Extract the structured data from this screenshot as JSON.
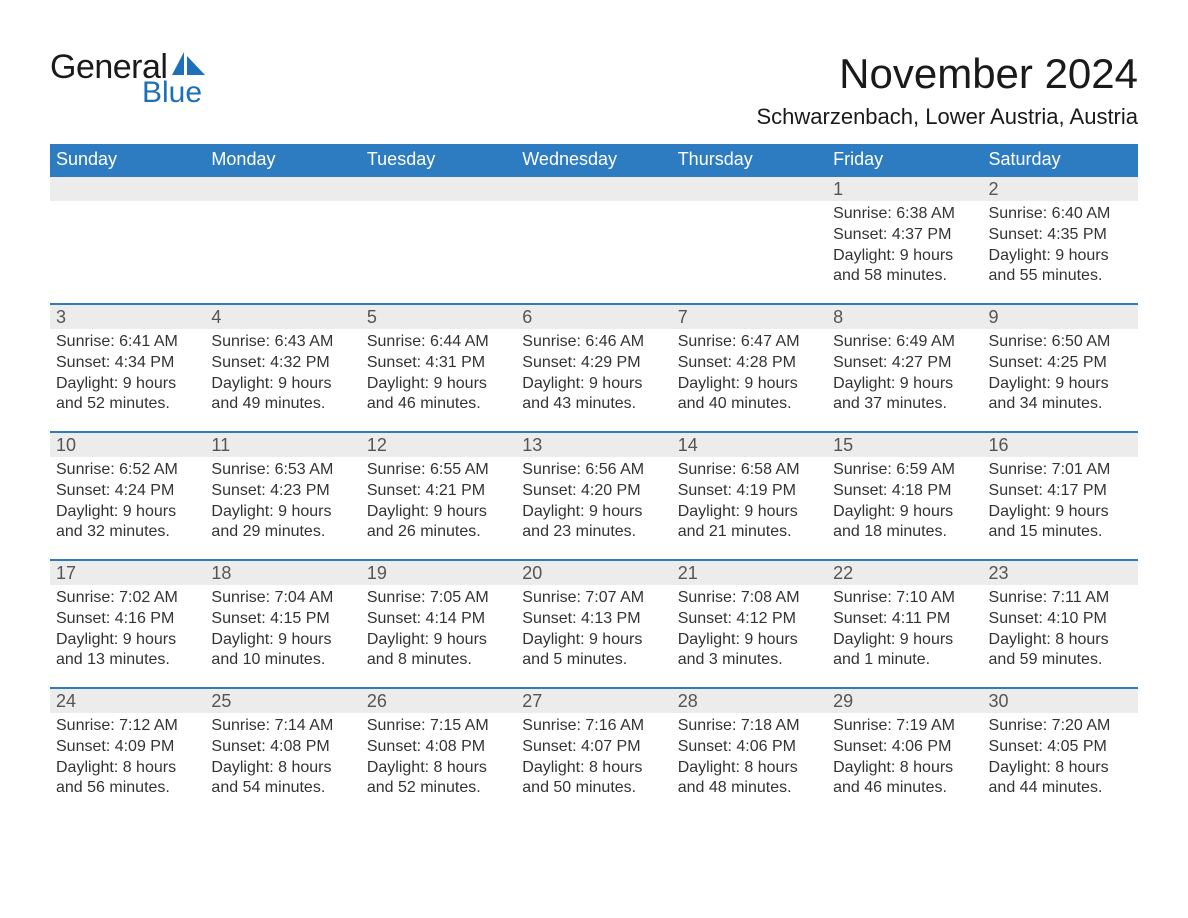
{
  "logo": {
    "general_text": "General",
    "blue_text": "Blue",
    "general_color": "#1a1a1a",
    "blue_color": "#1c6fb8",
    "sail_color": "#1c6fb8"
  },
  "title": "November 2024",
  "location": "Schwarzenbach, Lower Austria, Austria",
  "colors": {
    "header_bg": "#2d7cc1",
    "header_text": "#ffffff",
    "row_border": "#2d7cc1",
    "daynum_bg": "#ececec",
    "body_text": "#333333",
    "page_bg": "#ffffff"
  },
  "typography": {
    "title_fontsize": 42,
    "location_fontsize": 22,
    "dayheader_fontsize": 18,
    "daynum_fontsize": 18,
    "body_fontsize": 16
  },
  "day_headers": [
    "Sunday",
    "Monday",
    "Tuesday",
    "Wednesday",
    "Thursday",
    "Friday",
    "Saturday"
  ],
  "weeks": [
    [
      {
        "blank": true
      },
      {
        "blank": true
      },
      {
        "blank": true
      },
      {
        "blank": true
      },
      {
        "blank": true
      },
      {
        "n": "1",
        "sunrise": "Sunrise: 6:38 AM",
        "sunset": "Sunset: 4:37 PM",
        "dl1": "Daylight: 9 hours",
        "dl2": "and 58 minutes."
      },
      {
        "n": "2",
        "sunrise": "Sunrise: 6:40 AM",
        "sunset": "Sunset: 4:35 PM",
        "dl1": "Daylight: 9 hours",
        "dl2": "and 55 minutes."
      }
    ],
    [
      {
        "n": "3",
        "sunrise": "Sunrise: 6:41 AM",
        "sunset": "Sunset: 4:34 PM",
        "dl1": "Daylight: 9 hours",
        "dl2": "and 52 minutes."
      },
      {
        "n": "4",
        "sunrise": "Sunrise: 6:43 AM",
        "sunset": "Sunset: 4:32 PM",
        "dl1": "Daylight: 9 hours",
        "dl2": "and 49 minutes."
      },
      {
        "n": "5",
        "sunrise": "Sunrise: 6:44 AM",
        "sunset": "Sunset: 4:31 PM",
        "dl1": "Daylight: 9 hours",
        "dl2": "and 46 minutes."
      },
      {
        "n": "6",
        "sunrise": "Sunrise: 6:46 AM",
        "sunset": "Sunset: 4:29 PM",
        "dl1": "Daylight: 9 hours",
        "dl2": "and 43 minutes."
      },
      {
        "n": "7",
        "sunrise": "Sunrise: 6:47 AM",
        "sunset": "Sunset: 4:28 PM",
        "dl1": "Daylight: 9 hours",
        "dl2": "and 40 minutes."
      },
      {
        "n": "8",
        "sunrise": "Sunrise: 6:49 AM",
        "sunset": "Sunset: 4:27 PM",
        "dl1": "Daylight: 9 hours",
        "dl2": "and 37 minutes."
      },
      {
        "n": "9",
        "sunrise": "Sunrise: 6:50 AM",
        "sunset": "Sunset: 4:25 PM",
        "dl1": "Daylight: 9 hours",
        "dl2": "and 34 minutes."
      }
    ],
    [
      {
        "n": "10",
        "sunrise": "Sunrise: 6:52 AM",
        "sunset": "Sunset: 4:24 PM",
        "dl1": "Daylight: 9 hours",
        "dl2": "and 32 minutes."
      },
      {
        "n": "11",
        "sunrise": "Sunrise: 6:53 AM",
        "sunset": "Sunset: 4:23 PM",
        "dl1": "Daylight: 9 hours",
        "dl2": "and 29 minutes."
      },
      {
        "n": "12",
        "sunrise": "Sunrise: 6:55 AM",
        "sunset": "Sunset: 4:21 PM",
        "dl1": "Daylight: 9 hours",
        "dl2": "and 26 minutes."
      },
      {
        "n": "13",
        "sunrise": "Sunrise: 6:56 AM",
        "sunset": "Sunset: 4:20 PM",
        "dl1": "Daylight: 9 hours",
        "dl2": "and 23 minutes."
      },
      {
        "n": "14",
        "sunrise": "Sunrise: 6:58 AM",
        "sunset": "Sunset: 4:19 PM",
        "dl1": "Daylight: 9 hours",
        "dl2": "and 21 minutes."
      },
      {
        "n": "15",
        "sunrise": "Sunrise: 6:59 AM",
        "sunset": "Sunset: 4:18 PM",
        "dl1": "Daylight: 9 hours",
        "dl2": "and 18 minutes."
      },
      {
        "n": "16",
        "sunrise": "Sunrise: 7:01 AM",
        "sunset": "Sunset: 4:17 PM",
        "dl1": "Daylight: 9 hours",
        "dl2": "and 15 minutes."
      }
    ],
    [
      {
        "n": "17",
        "sunrise": "Sunrise: 7:02 AM",
        "sunset": "Sunset: 4:16 PM",
        "dl1": "Daylight: 9 hours",
        "dl2": "and 13 minutes."
      },
      {
        "n": "18",
        "sunrise": "Sunrise: 7:04 AM",
        "sunset": "Sunset: 4:15 PM",
        "dl1": "Daylight: 9 hours",
        "dl2": "and 10 minutes."
      },
      {
        "n": "19",
        "sunrise": "Sunrise: 7:05 AM",
        "sunset": "Sunset: 4:14 PM",
        "dl1": "Daylight: 9 hours",
        "dl2": "and 8 minutes."
      },
      {
        "n": "20",
        "sunrise": "Sunrise: 7:07 AM",
        "sunset": "Sunset: 4:13 PM",
        "dl1": "Daylight: 9 hours",
        "dl2": "and 5 minutes."
      },
      {
        "n": "21",
        "sunrise": "Sunrise: 7:08 AM",
        "sunset": "Sunset: 4:12 PM",
        "dl1": "Daylight: 9 hours",
        "dl2": "and 3 minutes."
      },
      {
        "n": "22",
        "sunrise": "Sunrise: 7:10 AM",
        "sunset": "Sunset: 4:11 PM",
        "dl1": "Daylight: 9 hours",
        "dl2": "and 1 minute."
      },
      {
        "n": "23",
        "sunrise": "Sunrise: 7:11 AM",
        "sunset": "Sunset: 4:10 PM",
        "dl1": "Daylight: 8 hours",
        "dl2": "and 59 minutes."
      }
    ],
    [
      {
        "n": "24",
        "sunrise": "Sunrise: 7:12 AM",
        "sunset": "Sunset: 4:09 PM",
        "dl1": "Daylight: 8 hours",
        "dl2": "and 56 minutes."
      },
      {
        "n": "25",
        "sunrise": "Sunrise: 7:14 AM",
        "sunset": "Sunset: 4:08 PM",
        "dl1": "Daylight: 8 hours",
        "dl2": "and 54 minutes."
      },
      {
        "n": "26",
        "sunrise": "Sunrise: 7:15 AM",
        "sunset": "Sunset: 4:08 PM",
        "dl1": "Daylight: 8 hours",
        "dl2": "and 52 minutes."
      },
      {
        "n": "27",
        "sunrise": "Sunrise: 7:16 AM",
        "sunset": "Sunset: 4:07 PM",
        "dl1": "Daylight: 8 hours",
        "dl2": "and 50 minutes."
      },
      {
        "n": "28",
        "sunrise": "Sunrise: 7:18 AM",
        "sunset": "Sunset: 4:06 PM",
        "dl1": "Daylight: 8 hours",
        "dl2": "and 48 minutes."
      },
      {
        "n": "29",
        "sunrise": "Sunrise: 7:19 AM",
        "sunset": "Sunset: 4:06 PM",
        "dl1": "Daylight: 8 hours",
        "dl2": "and 46 minutes."
      },
      {
        "n": "30",
        "sunrise": "Sunrise: 7:20 AM",
        "sunset": "Sunset: 4:05 PM",
        "dl1": "Daylight: 8 hours",
        "dl2": "and 44 minutes."
      }
    ]
  ]
}
